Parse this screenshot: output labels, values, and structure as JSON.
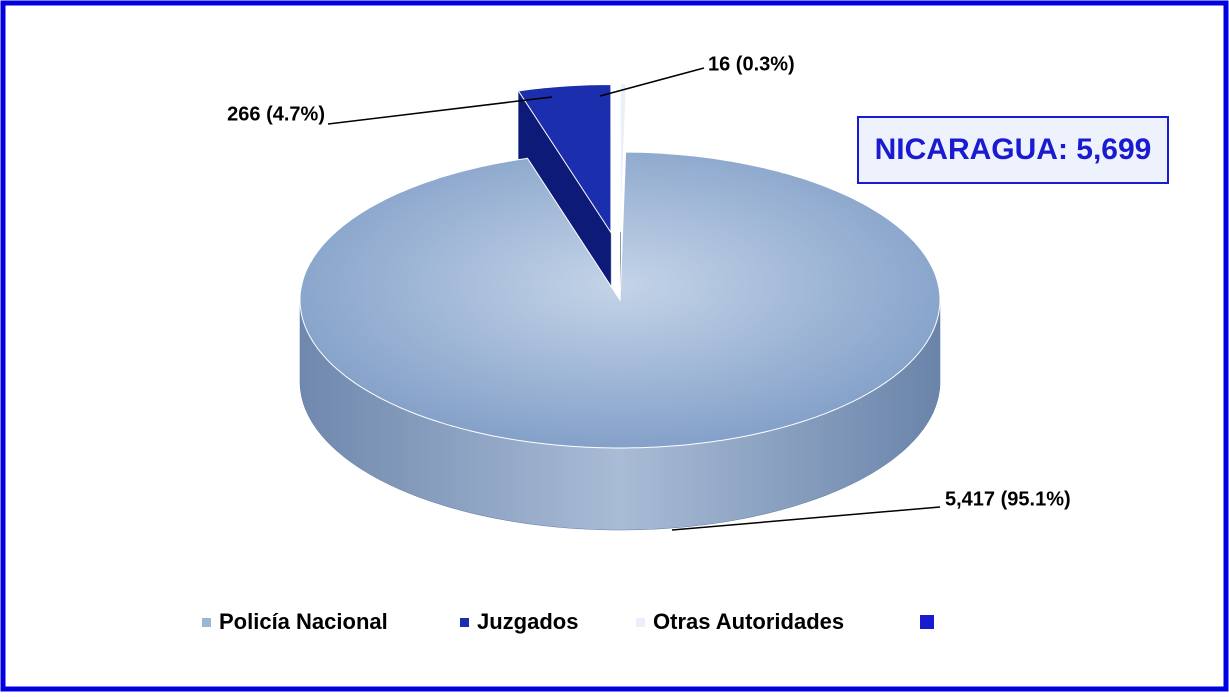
{
  "chart_data": {
    "type": "pie",
    "annotation": "NICARAGUA: 5,699",
    "categories": [
      "Policía Nacional",
      "Juzgados",
      "Otras Autoridades"
    ],
    "values": [
      5417,
      266,
      16
    ],
    "value_labels": [
      "5,417 (95.1%)",
      "266 (4.7%)",
      "16 (0.3%)"
    ],
    "colors": [
      "#9db6d6",
      "#1b2fae",
      "#e9f0fa"
    ],
    "exploded": [
      false,
      true,
      true
    ],
    "legend": "bottom"
  }
}
